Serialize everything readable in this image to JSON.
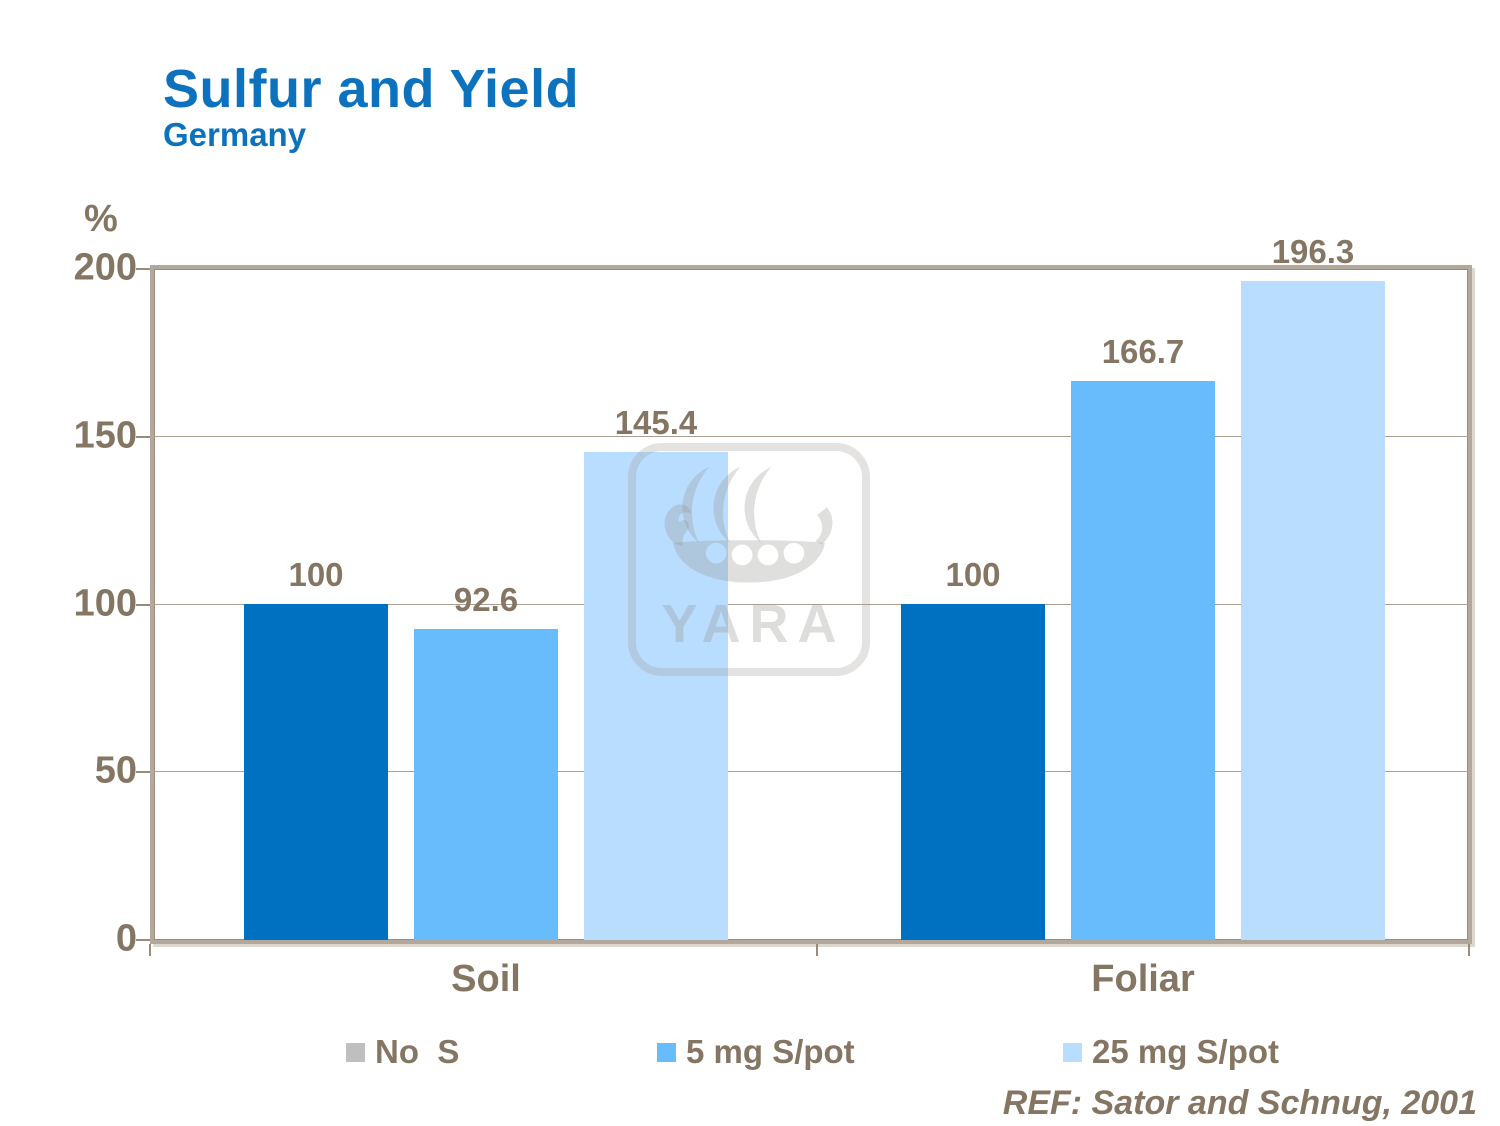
{
  "slide": {
    "title": "Sulfur and Yield",
    "subtitle": "Germany",
    "reference": "REF: Sator and Schnug, 2001",
    "watermark_text": "YARA"
  },
  "colors": {
    "title_blue": "#0d72bd",
    "label_brown": "#857663",
    "axis_tan": "#b2a89b",
    "axis_tan_dark": "#998c7d",
    "gridline_tan": "#ab9f92",
    "watermark_gray": "#e2e1e0"
  },
  "chart_data": {
    "type": "bar",
    "title": "Sulfur and Yield",
    "subtitle": "Germany",
    "ylabel": "%",
    "ylim": [
      0,
      200
    ],
    "yticks": [
      0,
      50,
      100,
      150,
      200
    ],
    "grid": true,
    "legend_position": "bottom",
    "categories": [
      "Soil",
      "Foliar"
    ],
    "series": [
      {
        "name": "No  S",
        "values": [
          100,
          100
        ],
        "labels": [
          "100",
          "100"
        ],
        "bar_color": "#0070c0",
        "legend_color": "#bfbfbf"
      },
      {
        "name": "5 mg S/pot",
        "values": [
          92.6,
          166.7
        ],
        "labels": [
          "92.6",
          "166.7"
        ],
        "bar_color": "#69bcfc",
        "legend_color": "#69bcfc"
      },
      {
        "name": "25 mg S/pot",
        "values": [
          145.4,
          196.3
        ],
        "labels": [
          "145.4",
          "196.3"
        ],
        "bar_color": "#b9ddfe",
        "legend_color": "#b9ddfe"
      }
    ],
    "annotations": [
      "REF: Sator and Schnug, 2001"
    ]
  }
}
